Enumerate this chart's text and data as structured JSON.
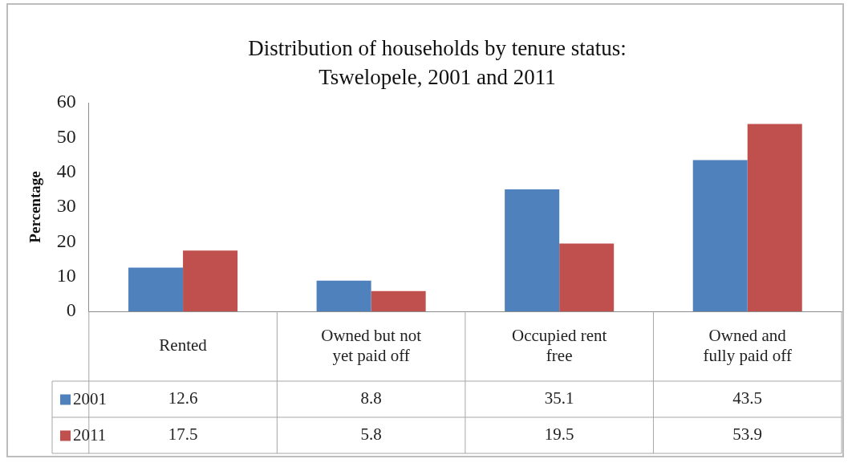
{
  "chart_data": {
    "type": "bar",
    "title": "Distribution of households by tenure status: Tswelopele, 2001 and 2011",
    "ylabel": "Percentage",
    "categories": [
      "Rented",
      "Owned but not yet paid off",
      "Occupied rent free",
      "Owned and fully paid off"
    ],
    "series": [
      {
        "name": "2001",
        "color": "#4f81bd",
        "values": [
          12.6,
          8.8,
          35.1,
          43.5
        ]
      },
      {
        "name": "2011",
        "color": "#c0504d",
        "values": [
          17.5,
          5.8,
          19.5,
          53.9
        ]
      }
    ],
    "ylim": [
      0,
      60
    ],
    "yticks": [
      0,
      10,
      20,
      30,
      40,
      50,
      60
    ],
    "grid": false,
    "legend": "bottom",
    "data_labels": true
  }
}
